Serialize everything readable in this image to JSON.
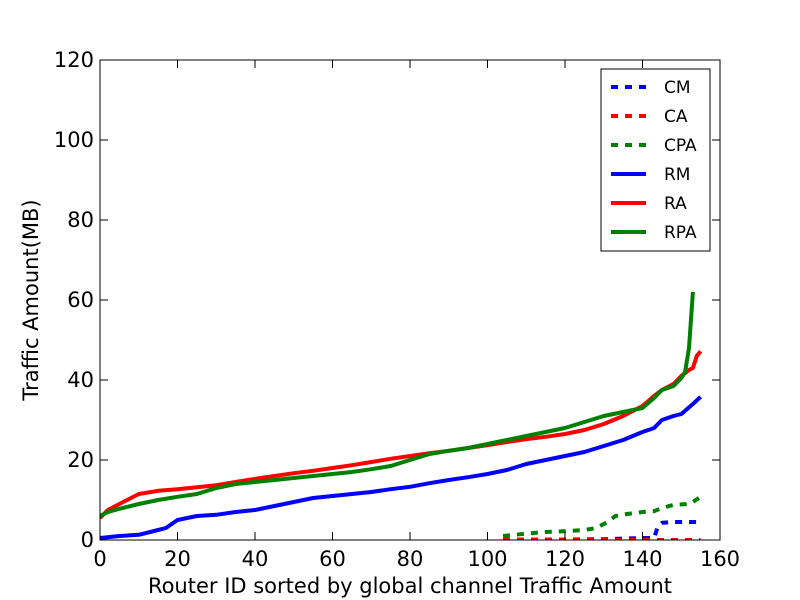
{
  "chart_data": {
    "type": "line",
    "xlabel": "Router ID sorted by global channel Traffic Amount",
    "ylabel": "Traffic Amount(MB)",
    "xlim": [
      0,
      160
    ],
    "ylim": [
      0,
      120
    ],
    "xticks": [
      "0",
      "20",
      "40",
      "60",
      "80",
      "100",
      "120",
      "140",
      "160"
    ],
    "yticks": [
      "0",
      "20",
      "40",
      "60",
      "80",
      "100",
      "120"
    ],
    "grid": false,
    "legend_position": "top-right",
    "series": [
      {
        "name": "CM",
        "color": "#0000ff",
        "style": "dashed",
        "x": [
          104,
          110,
          120,
          130,
          140,
          143,
          144,
          145,
          148,
          155
        ],
        "y": [
          0.1,
          0.1,
          0.1,
          0.2,
          0.5,
          0.5,
          3.5,
          4.3,
          4.5,
          4.5
        ]
      },
      {
        "name": "CA",
        "color": "#ff0000",
        "style": "dashed",
        "x": [
          104,
          155
        ],
        "y": [
          0,
          0
        ]
      },
      {
        "name": "CPA",
        "color": "#008000",
        "style": "dashed",
        "x": [
          104,
          106,
          110,
          115,
          120,
          125,
          128,
          131,
          133,
          136,
          140,
          143,
          145,
          148,
          152,
          153,
          155
        ],
        "y": [
          1.0,
          1.2,
          1.6,
          2.0,
          2.2,
          2.5,
          3.0,
          4.5,
          6.0,
          6.5,
          7.0,
          7.2,
          8.0,
          8.8,
          9.0,
          9.5,
          10.8
        ]
      },
      {
        "name": "RM",
        "color": "#0000ff",
        "style": "solid",
        "x": [
          0,
          5,
          10,
          15,
          17,
          20,
          25,
          30,
          35,
          40,
          45,
          50,
          55,
          60,
          65,
          70,
          75,
          80,
          85,
          90,
          95,
          100,
          105,
          110,
          115,
          120,
          125,
          130,
          135,
          140,
          143,
          145,
          148,
          150,
          153,
          155
        ],
        "y": [
          0.5,
          1.0,
          1.3,
          2.5,
          3.0,
          5.0,
          6.0,
          6.3,
          7.0,
          7.5,
          8.5,
          9.5,
          10.5,
          11.0,
          11.5,
          12.0,
          12.7,
          13.3,
          14.2,
          15.0,
          15.7,
          16.5,
          17.5,
          19.0,
          20.0,
          21.0,
          22.0,
          23.5,
          25.0,
          27.0,
          28.0,
          30.0,
          31.0,
          31.5,
          34.0,
          35.8
        ]
      },
      {
        "name": "RA",
        "color": "#ff0000",
        "style": "solid",
        "x": [
          0,
          2,
          5,
          8,
          10,
          15,
          20,
          25,
          30,
          35,
          40,
          45,
          50,
          55,
          60,
          65,
          70,
          75,
          80,
          85,
          90,
          95,
          100,
          105,
          110,
          115,
          120,
          125,
          130,
          135,
          140,
          143,
          145,
          148,
          150,
          152,
          153,
          154,
          155
        ],
        "y": [
          5.5,
          7.5,
          9.0,
          10.5,
          11.5,
          12.3,
          12.7,
          13.2,
          13.7,
          14.5,
          15.3,
          16.0,
          16.7,
          17.3,
          18.0,
          18.7,
          19.5,
          20.3,
          21.0,
          21.7,
          22.3,
          23.0,
          23.7,
          24.5,
          25.2,
          25.8,
          26.5,
          27.5,
          29.0,
          31.0,
          33.5,
          36.0,
          37.5,
          39.0,
          41.0,
          42.5,
          43.0,
          46.0,
          47.2
        ]
      },
      {
        "name": "RPA",
        "color": "#008000",
        "style": "solid",
        "x": [
          0,
          2,
          5,
          10,
          15,
          20,
          25,
          30,
          35,
          40,
          45,
          50,
          55,
          60,
          65,
          70,
          75,
          80,
          85,
          90,
          95,
          100,
          105,
          110,
          115,
          120,
          125,
          130,
          135,
          140,
          143,
          145,
          148,
          150,
          151,
          152,
          153
        ],
        "y": [
          6.0,
          7.0,
          7.8,
          9.0,
          10.0,
          10.8,
          11.5,
          13.0,
          14.0,
          14.5,
          15.0,
          15.5,
          16.0,
          16.5,
          17.0,
          17.7,
          18.5,
          20.0,
          21.5,
          22.3,
          23.0,
          24.0,
          25.0,
          26.0,
          27.0,
          28.0,
          29.5,
          31.0,
          32.0,
          33.0,
          35.5,
          37.5,
          38.5,
          40.5,
          42.0,
          48.0,
          62.0
        ]
      }
    ]
  }
}
